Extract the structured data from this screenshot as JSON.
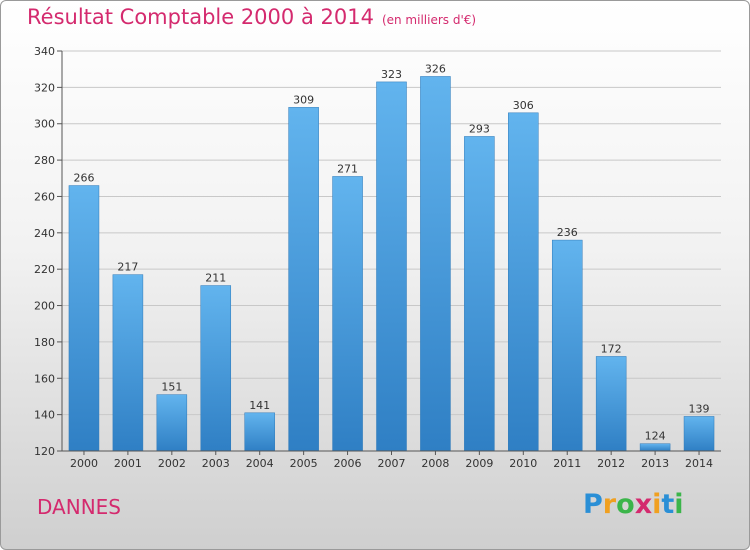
{
  "chart_data": {
    "type": "bar",
    "title": "Résultat Comptable 2000 à 2014",
    "subtitle": "(en milliers d'€)",
    "categories": [
      "2000",
      "2001",
      "2002",
      "2003",
      "2004",
      "2005",
      "2006",
      "2007",
      "2008",
      "2009",
      "2010",
      "2011",
      "2012",
      "2013",
      "2014"
    ],
    "values": [
      266,
      217,
      151,
      211,
      141,
      309,
      271,
      323,
      326,
      293,
      306,
      236,
      172,
      124,
      139
    ],
    "ylim": [
      120,
      340
    ],
    "yticks": [
      120,
      140,
      160,
      180,
      200,
      220,
      240,
      260,
      280,
      300,
      320,
      340
    ],
    "grid": true,
    "xlabel": "",
    "ylabel": ""
  },
  "commune": "DANNES",
  "logo": {
    "letters": [
      "P",
      "r",
      "o",
      "x",
      "i",
      "t",
      "i"
    ],
    "colors": [
      "#2a8fd6",
      "#f0a020",
      "#3bb54a",
      "#d42a6e",
      "#f0a020",
      "#2a8fd6",
      "#3bb54a"
    ]
  },
  "colors": {
    "accent": "#d42a6e",
    "bar": "#3a8fd6"
  }
}
